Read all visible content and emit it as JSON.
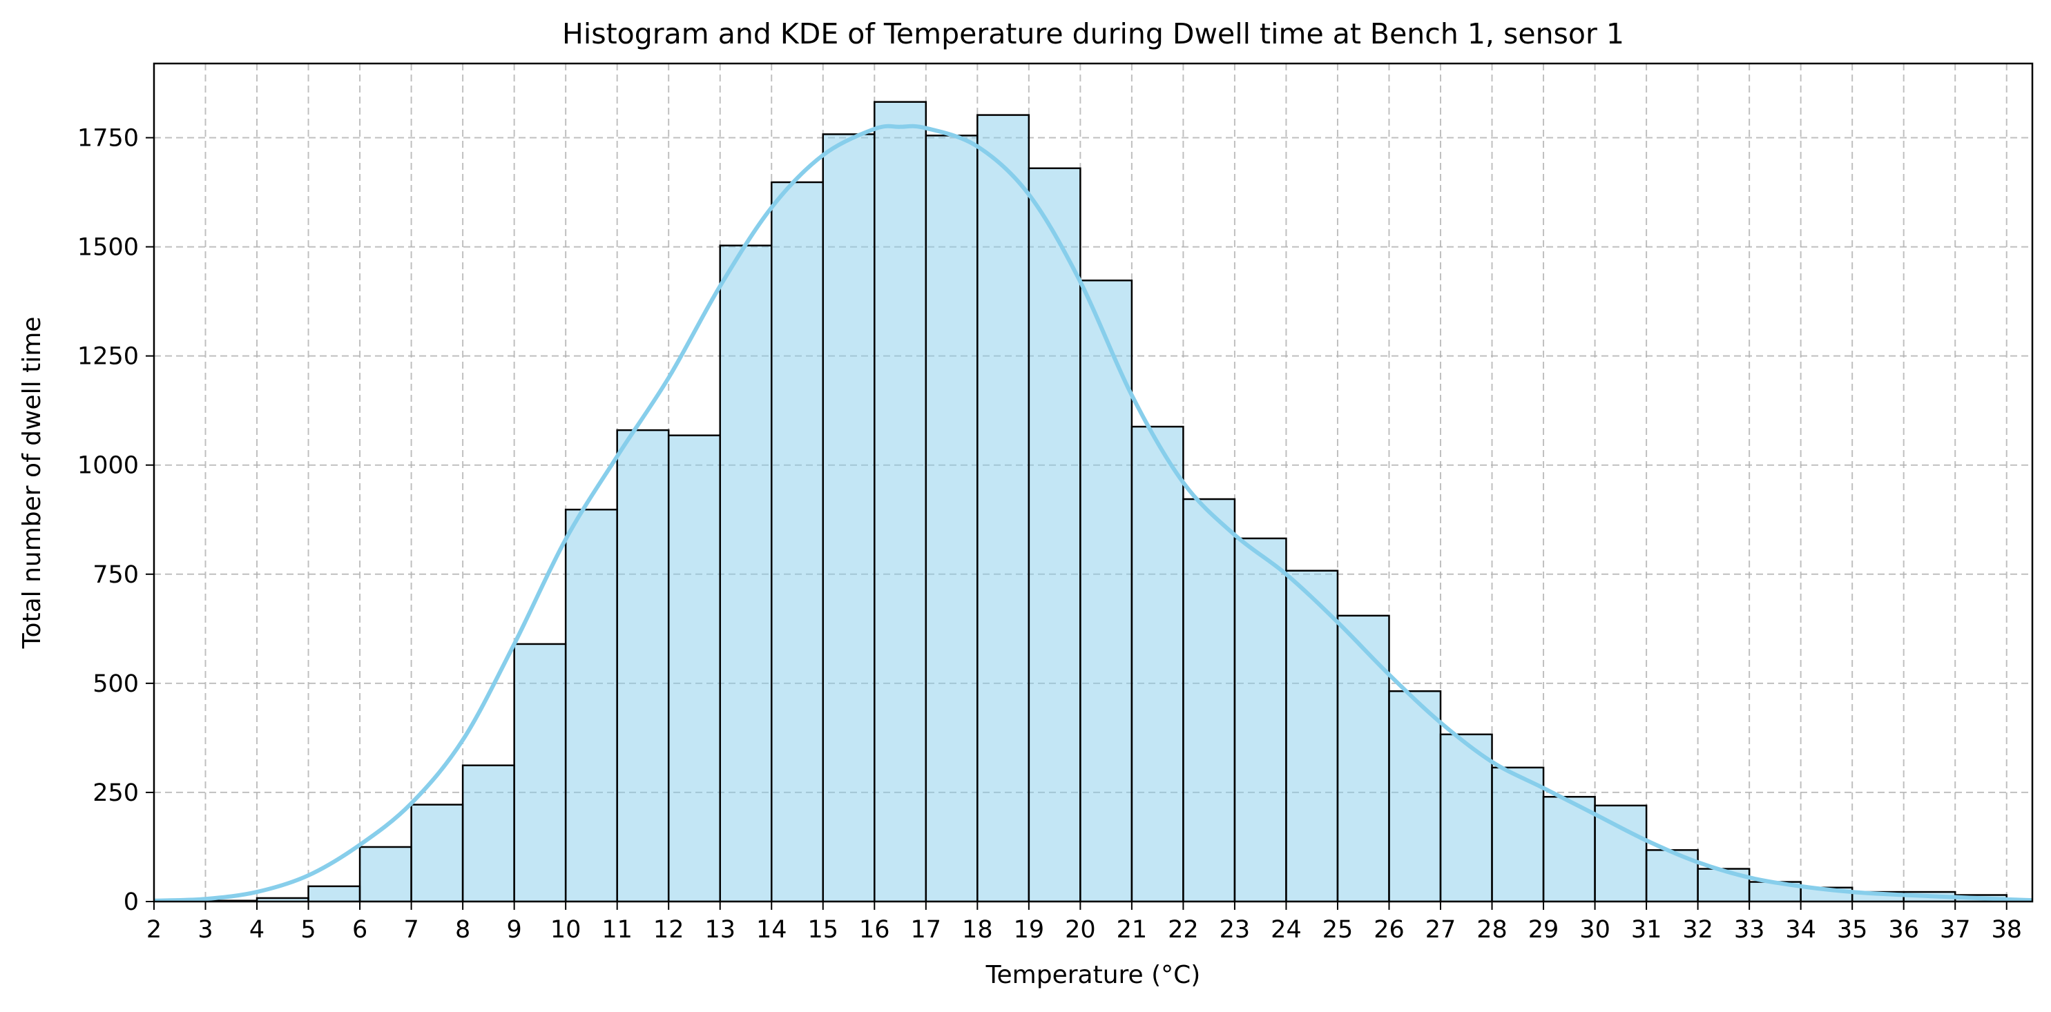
{
  "chart_data": {
    "type": "bar",
    "title": "Histogram and KDE of Temperature during Dwell time at Bench 1, sensor 1",
    "xlabel": "Temperature (°C)",
    "ylabel": "Total number of dwell time",
    "xlim": [
      2,
      38.5
    ],
    "ylim": [
      0,
      1920
    ],
    "x_ticks": [
      2,
      3,
      4,
      5,
      6,
      7,
      8,
      9,
      10,
      11,
      12,
      13,
      14,
      15,
      16,
      17,
      18,
      19,
      20,
      21,
      22,
      23,
      24,
      25,
      26,
      27,
      28,
      29,
      30,
      31,
      32,
      33,
      34,
      35,
      36,
      37,
      38
    ],
    "y_ticks": [
      0,
      250,
      500,
      750,
      1000,
      1250,
      1500,
      1750
    ],
    "grid": true,
    "bin_edges": [
      2,
      3,
      4,
      5,
      6,
      7,
      8,
      9,
      10,
      11,
      12,
      13,
      14,
      15,
      16,
      17,
      18,
      19,
      20,
      21,
      22,
      23,
      24,
      25,
      26,
      27,
      28,
      29,
      30,
      31,
      32,
      33,
      34,
      35,
      36,
      37,
      38,
      39
    ],
    "values": [
      1,
      2,
      8,
      35,
      125,
      222,
      312,
      590,
      898,
      1080,
      1068,
      1503,
      1648,
      1758,
      1832,
      1755,
      1802,
      1680,
      1423,
      1088,
      922,
      832,
      758,
      655,
      482,
      383,
      307,
      240,
      220,
      118,
      75,
      45,
      32,
      22,
      22,
      15,
      5
    ],
    "bar_color": "#87ceeb",
    "bar_fill_opacity": 0.5,
    "bar_edge_color": "#000000",
    "kde": {
      "color": "#87ceeb",
      "x": [
        2,
        3,
        4,
        5,
        6,
        7,
        8,
        9,
        10,
        11,
        12,
        13,
        14,
        15,
        16,
        16.5,
        17,
        18,
        19,
        20,
        21,
        22,
        23,
        24,
        25,
        26,
        27,
        28,
        29,
        30,
        31,
        32,
        33,
        34,
        35,
        36,
        37,
        38,
        38.5
      ],
      "y": [
        2,
        6,
        22,
        60,
        130,
        225,
        370,
        590,
        830,
        1020,
        1200,
        1410,
        1590,
        1710,
        1770,
        1775,
        1772,
        1730,
        1620,
        1420,
        1160,
        960,
        840,
        750,
        640,
        520,
        410,
        320,
        260,
        200,
        140,
        90,
        55,
        35,
        22,
        15,
        10,
        5,
        3
      ]
    }
  }
}
